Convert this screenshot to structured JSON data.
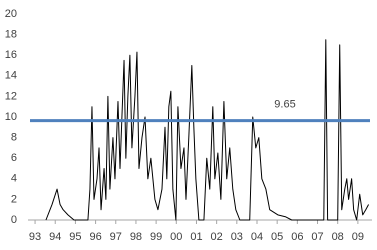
{
  "chart_data": {
    "type": "line",
    "x": [
      1993.54,
      1993.84,
      1994.09,
      1994.24,
      1994.39,
      1994.63,
      1994.93,
      1995.62,
      1995.72,
      1995.82,
      1995.92,
      1996.07,
      1996.17,
      1996.27,
      1996.42,
      1996.51,
      1996.61,
      1996.71,
      1996.86,
      1996.96,
      1997.11,
      1997.21,
      1997.41,
      1997.5,
      1997.6,
      1997.7,
      1997.8,
      1997.95,
      1998.05,
      1998.15,
      1998.3,
      1998.45,
      1998.59,
      1998.74,
      1998.94,
      1999.09,
      1999.29,
      1999.44,
      1999.53,
      1999.63,
      1999.73,
      1999.83,
      1999.98,
      2000.08,
      2000.23,
      2000.38,
      2000.48,
      2000.62,
      2000.77,
      2000.87,
      2000.97,
      2001.12,
      2001.37,
      2001.51,
      2001.66,
      2001.81,
      2001.91,
      2002.06,
      2002.21,
      2002.36,
      2002.5,
      2002.65,
      2002.8,
      2002.95,
      2003.15,
      2003.64,
      2003.79,
      2003.94,
      2004.09,
      2004.24,
      2004.44,
      2004.63,
      2005.03,
      2005.43,
      2005.72,
      2007.31,
      2007.41,
      2007.5,
      2008.0,
      2008.1,
      2008.2,
      2008.35,
      2008.45,
      2008.54,
      2008.69,
      2008.79,
      2008.94,
      2009.09,
      2009.24,
      2009.39,
      2009.53
    ],
    "series": [
      {
        "color": "#000000",
        "values": [
          0,
          1.5,
          3,
          1.5,
          1,
          0.5,
          0,
          0,
          3,
          11,
          2,
          4,
          7,
          1,
          5,
          2,
          12,
          3,
          8,
          4,
          11.5,
          5,
          15.5,
          6,
          12,
          16,
          7,
          12,
          16.3,
          5,
          8,
          10,
          4,
          6,
          2,
          1,
          3,
          9,
          4,
          11,
          12.5,
          3,
          0,
          11,
          5,
          7,
          2,
          8,
          15,
          9,
          4,
          0,
          0,
          6,
          3,
          11,
          4,
          6.5,
          2,
          11.5,
          4,
          7,
          3,
          1,
          0,
          0,
          10,
          7,
          8,
          4,
          3,
          1,
          0.5,
          0.3,
          0,
          0,
          17.5,
          0,
          0,
          17,
          1,
          3,
          4,
          2,
          4,
          1,
          0,
          2.5,
          0.5,
          1,
          1.5
        ]
      }
    ],
    "hline": {
      "value": 9.65,
      "label": "9.65",
      "color": "#4f81bd"
    },
    "xlim": [
      1992.65,
      2009.7
    ],
    "xticks": [
      {
        "value": 1993,
        "label": "93"
      },
      {
        "value": 1994,
        "label": "94"
      },
      {
        "value": 1995,
        "label": "95"
      },
      {
        "value": 1996,
        "label": "96"
      },
      {
        "value": 1997,
        "label": "97"
      },
      {
        "value": 1998,
        "label": "98"
      },
      {
        "value": 1999,
        "label": "99"
      },
      {
        "value": 2000,
        "label": "00"
      },
      {
        "value": 2001,
        "label": "01"
      },
      {
        "value": 2002,
        "label": "02"
      },
      {
        "value": 2003,
        "label": "03"
      },
      {
        "value": 2004,
        "label": "04"
      },
      {
        "value": 2005,
        "label": "05"
      },
      {
        "value": 2006,
        "label": "06"
      },
      {
        "value": 2007,
        "label": "07"
      },
      {
        "value": 2008,
        "label": "08"
      },
      {
        "value": 2009,
        "label": "09"
      }
    ],
    "ylim": [
      0,
      20
    ],
    "yticks": [
      0,
      2,
      4,
      6,
      8,
      10,
      12,
      14,
      16,
      18,
      20
    ]
  }
}
